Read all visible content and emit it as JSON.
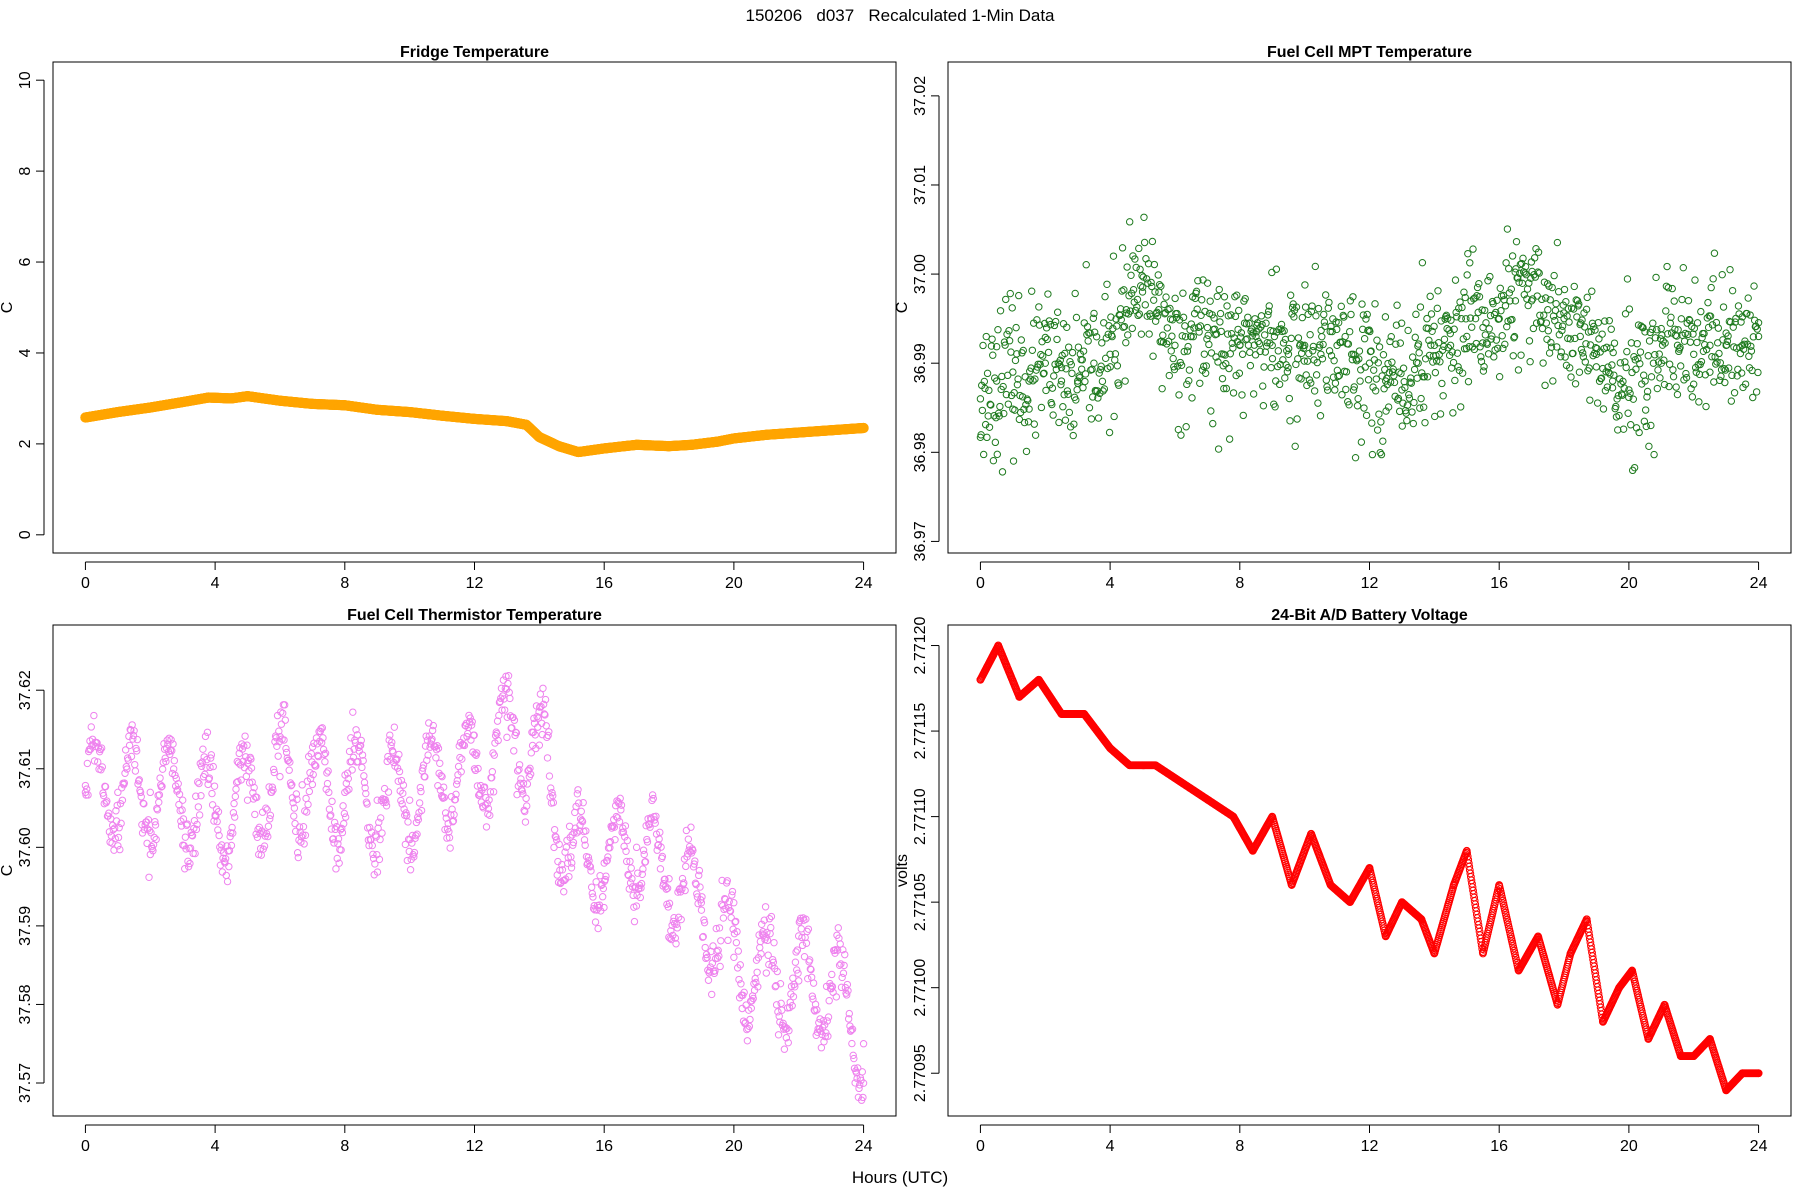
{
  "page": {
    "title": "150206   d037   Recalculated 1-Min Data",
    "xlabel": "Hours (UTC)"
  },
  "chart_data": [
    {
      "id": "fridge",
      "type": "scatter",
      "title": "Fridge Temperature",
      "xlabel": "Hours (UTC)",
      "ylabel": "C",
      "xlim": [
        -1,
        25
      ],
      "ylim": [
        -0.4,
        10.4
      ],
      "xticks": [
        0,
        4,
        8,
        12,
        16,
        20,
        24
      ],
      "xtick_labels": [
        "0",
        "4",
        "8",
        "12",
        "16",
        "20",
        "24"
      ],
      "yticks": [
        0,
        2,
        4,
        6,
        8,
        10
      ],
      "ytick_labels": [
        "0",
        "2",
        "4",
        "6",
        "8",
        "10"
      ],
      "color": "#ffa500",
      "marker": "filled-circle",
      "series": [
        {
          "name": "Fridge Temperature",
          "x": [
            0,
            1,
            2,
            3,
            3.8,
            4.5,
            5,
            6,
            7,
            8,
            9,
            10,
            11,
            12,
            13,
            13.6,
            14,
            14.6,
            15.2,
            16,
            17,
            18,
            18.7,
            19.5,
            20,
            21,
            22,
            23,
            24
          ],
          "y": [
            2.58,
            2.7,
            2.8,
            2.92,
            3.02,
            3.0,
            3.05,
            2.95,
            2.88,
            2.85,
            2.75,
            2.7,
            2.62,
            2.55,
            2.5,
            2.42,
            2.15,
            1.95,
            1.82,
            1.9,
            1.98,
            1.95,
            1.98,
            2.05,
            2.12,
            2.2,
            2.25,
            2.3,
            2.35
          ]
        }
      ]
    },
    {
      "id": "mpt",
      "type": "scatter",
      "title": "Fuel Cell MPT Temperature",
      "xlabel": "Hours (UTC)",
      "ylabel": "C",
      "xlim": [
        -1,
        25
      ],
      "ylim": [
        36.9687,
        37.0238
      ],
      "xticks": [
        0,
        4,
        8,
        12,
        16,
        20,
        24
      ],
      "xtick_labels": [
        "0",
        "4",
        "8",
        "12",
        "16",
        "20",
        "24"
      ],
      "yticks": [
        36.97,
        36.98,
        36.99,
        37.0,
        37.01,
        37.02
      ],
      "ytick_labels": [
        "36.97",
        "36.98",
        "36.99",
        "37.00",
        "37.01",
        "37.02"
      ],
      "color": "#1e7a1e",
      "marker": "open-circle",
      "series": [
        {
          "name": "Fuel Cell MPT Temperature",
          "x": [
            0,
            0.5,
            1,
            1.5,
            2,
            2.5,
            3,
            3.5,
            4,
            4.5,
            5,
            5.5,
            6,
            6.5,
            7,
            7.5,
            8,
            8.5,
            9,
            9.5,
            10,
            10.5,
            11,
            11.5,
            12,
            12.5,
            13,
            13.5,
            14,
            14.5,
            15,
            15.5,
            16,
            16.5,
            17,
            17.5,
            18,
            18.5,
            19,
            19.5,
            20,
            20.5,
            21,
            21.5,
            22,
            22.5,
            23,
            23.5,
            24
          ],
          "y": [
            36.986,
            36.988,
            36.989,
            36.988,
            36.99,
            36.988,
            36.988,
            36.99,
            36.991,
            36.996,
            36.998,
            36.996,
            36.992,
            36.993,
            36.994,
            36.991,
            36.992,
            36.993,
            36.992,
            36.991,
            36.992,
            36.991,
            36.992,
            36.991,
            36.99,
            36.988,
            36.987,
            36.99,
            36.992,
            36.992,
            36.993,
            36.994,
            36.995,
            36.997,
            36.997,
            36.996,
            36.995,
            36.993,
            36.991,
            36.988,
            36.987,
            36.988,
            36.99,
            36.992,
            36.991,
            36.992,
            36.992,
            36.992,
            36.993
          ]
        }
      ]
    },
    {
      "id": "thermistor",
      "type": "scatter",
      "title": "Fuel Cell Thermistor Temperature",
      "xlabel": "Hours (UTC)",
      "ylabel": "C",
      "xlim": [
        -1,
        25
      ],
      "ylim": [
        37.5658,
        37.6283
      ],
      "xticks": [
        0,
        4,
        8,
        12,
        16,
        20,
        24
      ],
      "xtick_labels": [
        "0",
        "4",
        "8",
        "12",
        "16",
        "20",
        "24"
      ],
      "yticks": [
        37.57,
        37.58,
        37.59,
        37.6,
        37.61,
        37.62
      ],
      "ytick_labels": [
        "37.57",
        "37.58",
        "37.59",
        "37.60",
        "37.61",
        "37.62"
      ],
      "color": "#ee82ee",
      "marker": "open-circle",
      "series": [
        {
          "name": "Fuel Cell Thermistor Temperature",
          "x": [
            0,
            1,
            2,
            3,
            4,
            5,
            6,
            7,
            8,
            9,
            10,
            11,
            12,
            13,
            14,
            15,
            16,
            17,
            18,
            19,
            20,
            21,
            22,
            23,
            24
          ],
          "y": [
            37.607,
            37.607,
            37.607,
            37.606,
            37.604,
            37.606,
            37.609,
            37.608,
            37.607,
            37.606,
            37.606,
            37.609,
            37.61,
            37.614,
            37.613,
            37.598,
            37.598,
            37.6,
            37.596,
            37.592,
            37.586,
            37.584,
            37.583,
            37.582,
            37.575
          ]
        }
      ]
    },
    {
      "id": "battery",
      "type": "scatter",
      "title": "24-Bit A/D Battery Voltage",
      "xlabel": "Hours (UTC)",
      "ylabel": "volts",
      "xlim": [
        -1,
        25
      ],
      "ylim": [
        2.770925,
        2.771212
      ],
      "xticks": [
        0,
        4,
        8,
        12,
        16,
        20,
        24
      ],
      "xtick_labels": [
        "0",
        "4",
        "8",
        "12",
        "16",
        "20",
        "24"
      ],
      "yticks": [
        2.77095,
        2.771,
        2.77105,
        2.7711,
        2.77115,
        2.7712
      ],
      "ytick_labels": [
        "2.77095",
        "2.77100",
        "2.77105",
        "2.77110",
        "2.77115",
        "2.77120"
      ],
      "color": "#ff0000",
      "marker": "open-circle",
      "series": [
        {
          "name": "24-Bit A/D Battery Voltage",
          "x": [
            0,
            0.55,
            1.2,
            1.8,
            2.5,
            3.2,
            4.0,
            4.6,
            5.4,
            6.2,
            7.0,
            7.8,
            8.4,
            9.0,
            9.6,
            10.2,
            10.8,
            11.4,
            12.0,
            12.5,
            13.0,
            13.6,
            14.0,
            14.6,
            15.0,
            15.5,
            16.0,
            16.6,
            17.2,
            17.8,
            18.2,
            18.7,
            19.2,
            19.7,
            20.1,
            20.6,
            21.1,
            21.6,
            22.0,
            22.5,
            23.0,
            23.5,
            24.0
          ],
          "y": [
            2.77118,
            2.7712,
            2.77117,
            2.77118,
            2.77116,
            2.77116,
            2.77114,
            2.77113,
            2.77113,
            2.77112,
            2.77111,
            2.7711,
            2.77108,
            2.7711,
            2.77106,
            2.77109,
            2.77106,
            2.77105,
            2.77107,
            2.77103,
            2.77105,
            2.77104,
            2.77102,
            2.77106,
            2.77108,
            2.77102,
            2.77106,
            2.77101,
            2.77103,
            2.77099,
            2.77102,
            2.77104,
            2.77098,
            2.771,
            2.77101,
            2.77097,
            2.77099,
            2.77096,
            2.77096,
            2.77097,
            2.77094,
            2.77095,
            2.77095
          ]
        }
      ]
    }
  ]
}
